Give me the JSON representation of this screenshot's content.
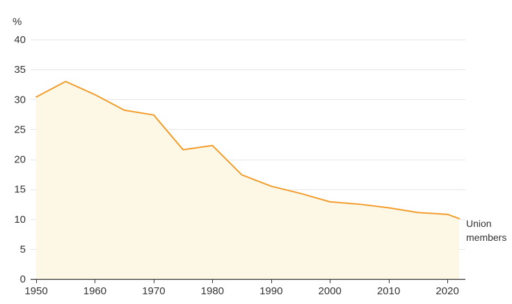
{
  "chart_data": {
    "type": "area",
    "title": "",
    "xlabel": "",
    "ylabel": "%",
    "xlim": [
      1950,
      2022
    ],
    "ylim": [
      0,
      40
    ],
    "x_ticks": [
      1950,
      1960,
      1970,
      1980,
      1990,
      2000,
      2010,
      2020
    ],
    "y_ticks": [
      0,
      5,
      10,
      15,
      20,
      25,
      30,
      35,
      40
    ],
    "grid": true,
    "legend": "none",
    "series": [
      {
        "name": "Union members",
        "label_lines": [
          "Union",
          "members"
        ],
        "color": "#f39c2b",
        "fill_color": "#fdf8e6",
        "x": [
          1950,
          1955,
          1960,
          1965,
          1970,
          1975,
          1980,
          1985,
          1990,
          1995,
          2000,
          2005,
          2010,
          2015,
          2020,
          2022
        ],
        "y": [
          30.4,
          33.0,
          30.8,
          28.2,
          27.4,
          21.6,
          22.3,
          17.4,
          15.5,
          14.3,
          12.9,
          12.5,
          11.9,
          11.1,
          10.8,
          10.1
        ]
      }
    ]
  }
}
